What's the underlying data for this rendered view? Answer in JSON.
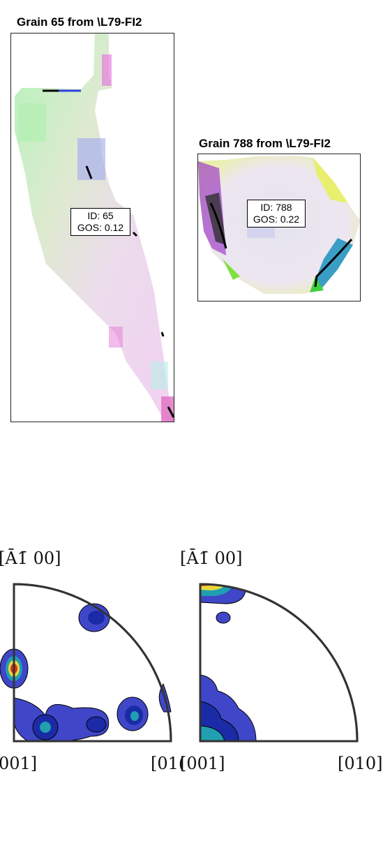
{
  "grains": [
    {
      "title": "Grain 65 from \\L79-FI2",
      "id_line": "ID: 65",
      "gos_line": "GOS: 0.12"
    },
    {
      "title": "Grain 788 from \\L79-FI2",
      "id_line": "ID: 788",
      "gos_line": "GOS: 0.22"
    }
  ],
  "pole_figures": [
    {
      "top_label": "[Ā1̄ 00]",
      "left_label": "001]",
      "right_label": "[01("
    },
    {
      "top_label": "[Ā1̄ 00]",
      "left_label": "[001]",
      "right_label": "[010]"
    }
  ],
  "colors": {
    "contour_outer": "#3f47c8",
    "contour_mid": "#1b2ba8",
    "contour_teal": "#1f9fb0",
    "contour_red": "#d9301c",
    "contour_orange": "#f08a1e",
    "contour_yellow": "#e9d83a"
  }
}
